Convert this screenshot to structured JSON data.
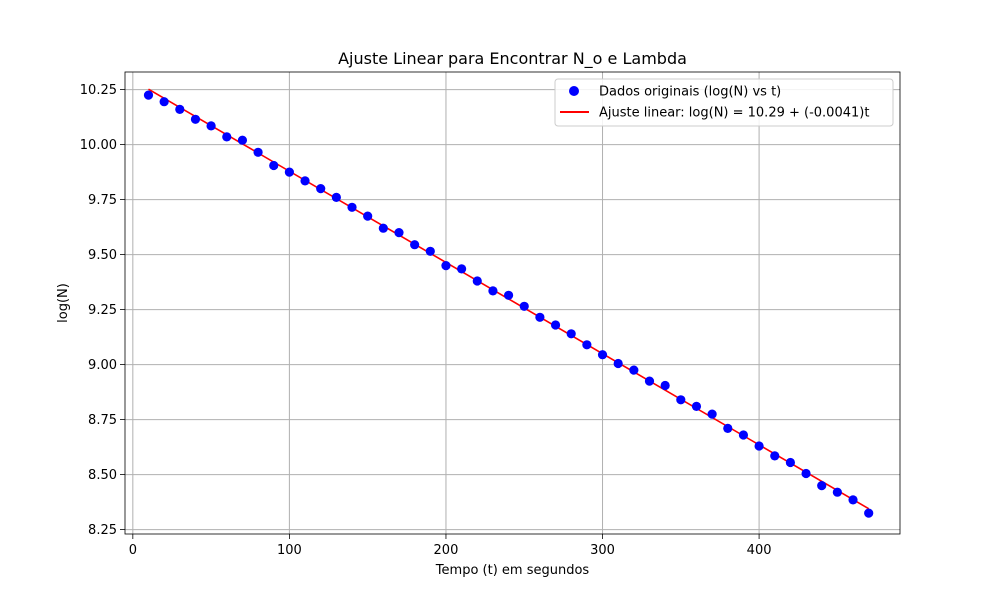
{
  "chart_data": {
    "type": "scatter",
    "title": "Ajuste Linear para Encontrar N_o e Lambda",
    "xlabel": "Tempo (t) em segundos",
    "ylabel": "log(N)",
    "xlim": [
      -5,
      490
    ],
    "ylim": [
      8.23,
      10.33
    ],
    "xticks": [
      "0",
      "100",
      "200",
      "300",
      "400"
    ],
    "yticks": [
      "8.25",
      "8.50",
      "8.75",
      "9.00",
      "9.25",
      "9.50",
      "9.75",
      "10.00",
      "10.25"
    ],
    "grid": true,
    "legend_position": "top-right",
    "colors": {
      "points": "#0000ff",
      "fit": "#ff0000",
      "grid": "#b0b0b0"
    },
    "series": [
      {
        "name": "Dados originais (log(N) vs t)",
        "kind": "scatter",
        "x": [
          10,
          20,
          30,
          40,
          50,
          60,
          70,
          80,
          90,
          100,
          110,
          120,
          130,
          140,
          150,
          160,
          170,
          180,
          190,
          200,
          210,
          220,
          230,
          240,
          250,
          260,
          270,
          280,
          290,
          300,
          310,
          320,
          330,
          340,
          350,
          360,
          370,
          380,
          390,
          400,
          410,
          420,
          430,
          440,
          450,
          460,
          470
        ],
        "y": [
          10.225,
          10.195,
          10.16,
          10.115,
          10.085,
          10.035,
          10.02,
          9.965,
          9.905,
          9.875,
          9.835,
          9.8,
          9.76,
          9.715,
          9.675,
          9.62,
          9.6,
          9.545,
          9.515,
          9.45,
          9.435,
          9.38,
          9.335,
          9.315,
          9.265,
          9.215,
          9.18,
          9.14,
          9.09,
          9.045,
          9.005,
          8.975,
          8.925,
          8.905,
          8.84,
          8.81,
          8.775,
          8.71,
          8.68,
          8.63,
          8.585,
          8.555,
          8.505,
          8.45,
          8.42,
          8.385,
          8.325
        ]
      },
      {
        "name": "Ajuste linear: log(N) = 10.29 + (-0.0041)t",
        "kind": "line",
        "x": [
          10,
          470
        ],
        "y": [
          10.252,
          8.345
        ]
      }
    ]
  }
}
